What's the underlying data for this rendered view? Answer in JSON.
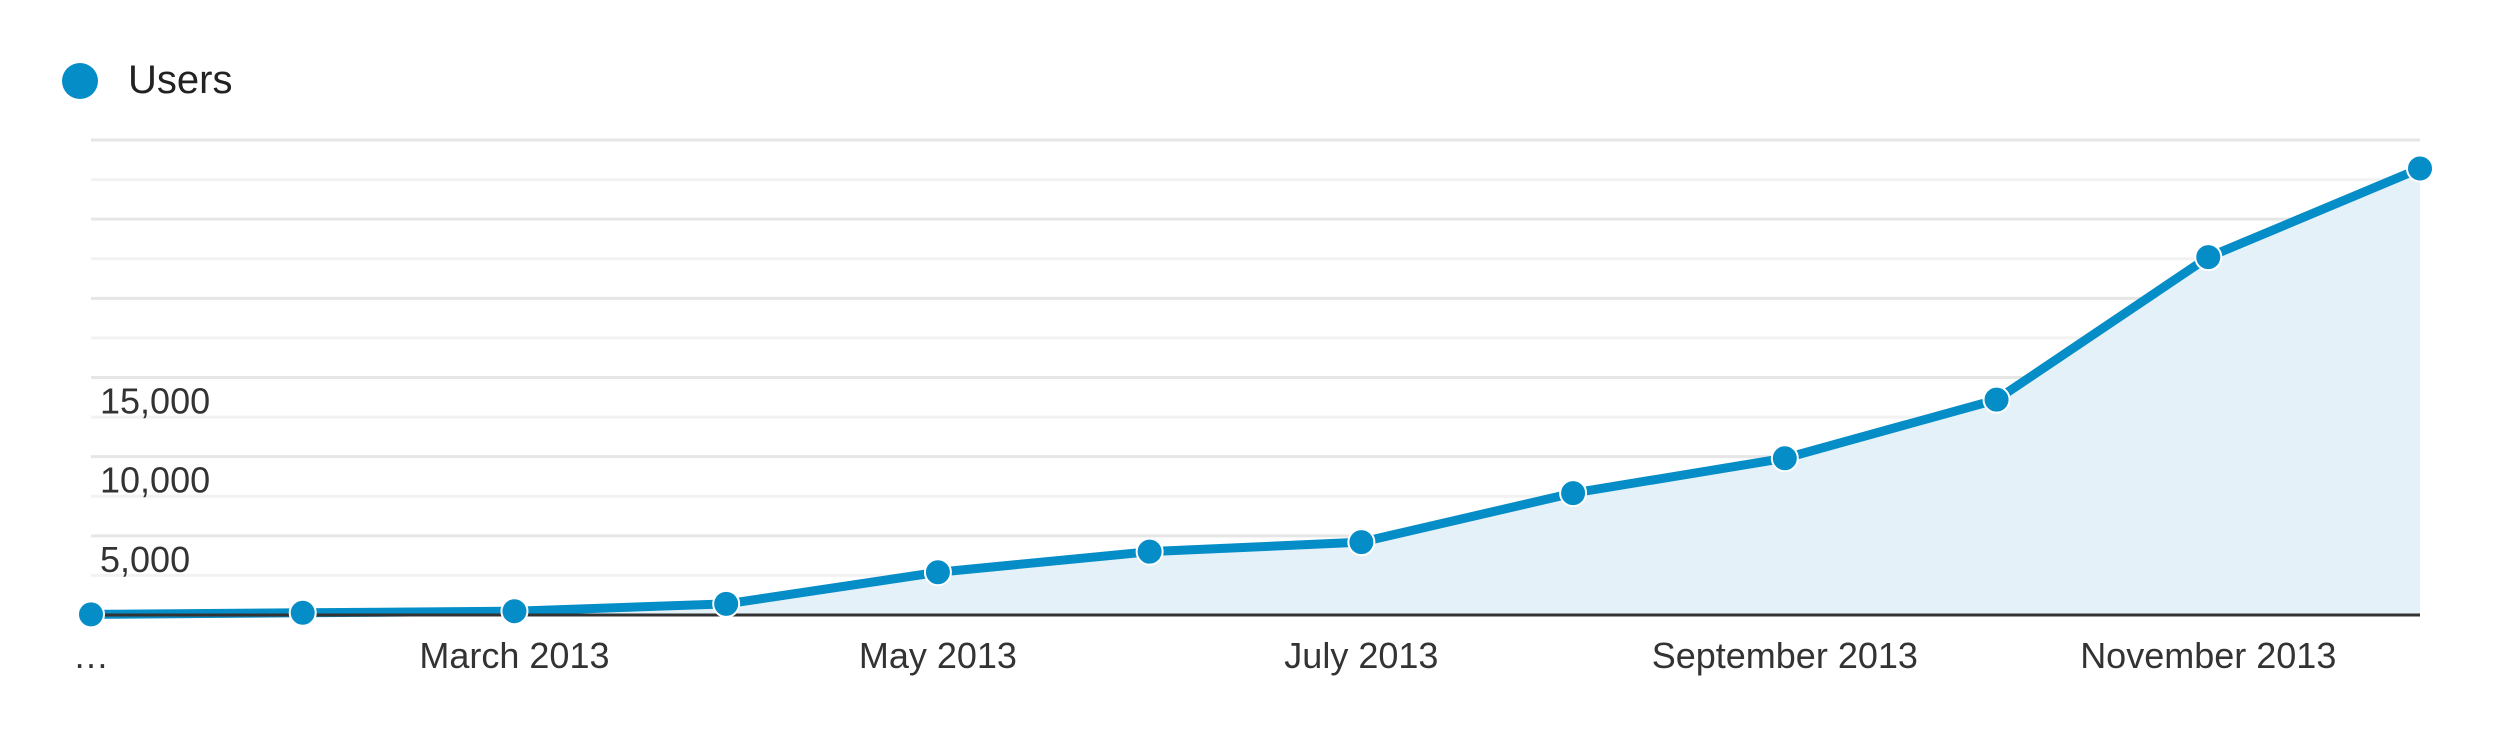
{
  "colors": {
    "series": "#058dc7",
    "area": "#e5f1f8",
    "grid_major": "#e6e6e6",
    "grid_minor": "#f2f2f2",
    "axis": "#333333"
  },
  "legend": {
    "label": "Users",
    "icon": "circle-dot-icon"
  },
  "chart_data": {
    "type": "area",
    "series": [
      {
        "name": "Users",
        "values": [
          40,
          140,
          240,
          700,
          2700,
          4000,
          4600,
          7700,
          9900,
          13600,
          22600,
          28200
        ]
      }
    ],
    "x_labels": [
      {
        "index": 0,
        "label": "…"
      },
      {
        "index": 2,
        "label": "March 2013"
      },
      {
        "index": 4,
        "label": "May 2013"
      },
      {
        "index": 6,
        "label": "July 2013"
      },
      {
        "index": 8,
        "label": "September 2013"
      },
      {
        "index": 10,
        "label": "November 2013"
      }
    ],
    "y_ticks": [
      5000,
      10000,
      15000
    ],
    "y_tick_labels": [
      "5,000",
      "10,000",
      "15,000"
    ],
    "ylim": [
      0,
      30000
    ],
    "grid": true
  }
}
